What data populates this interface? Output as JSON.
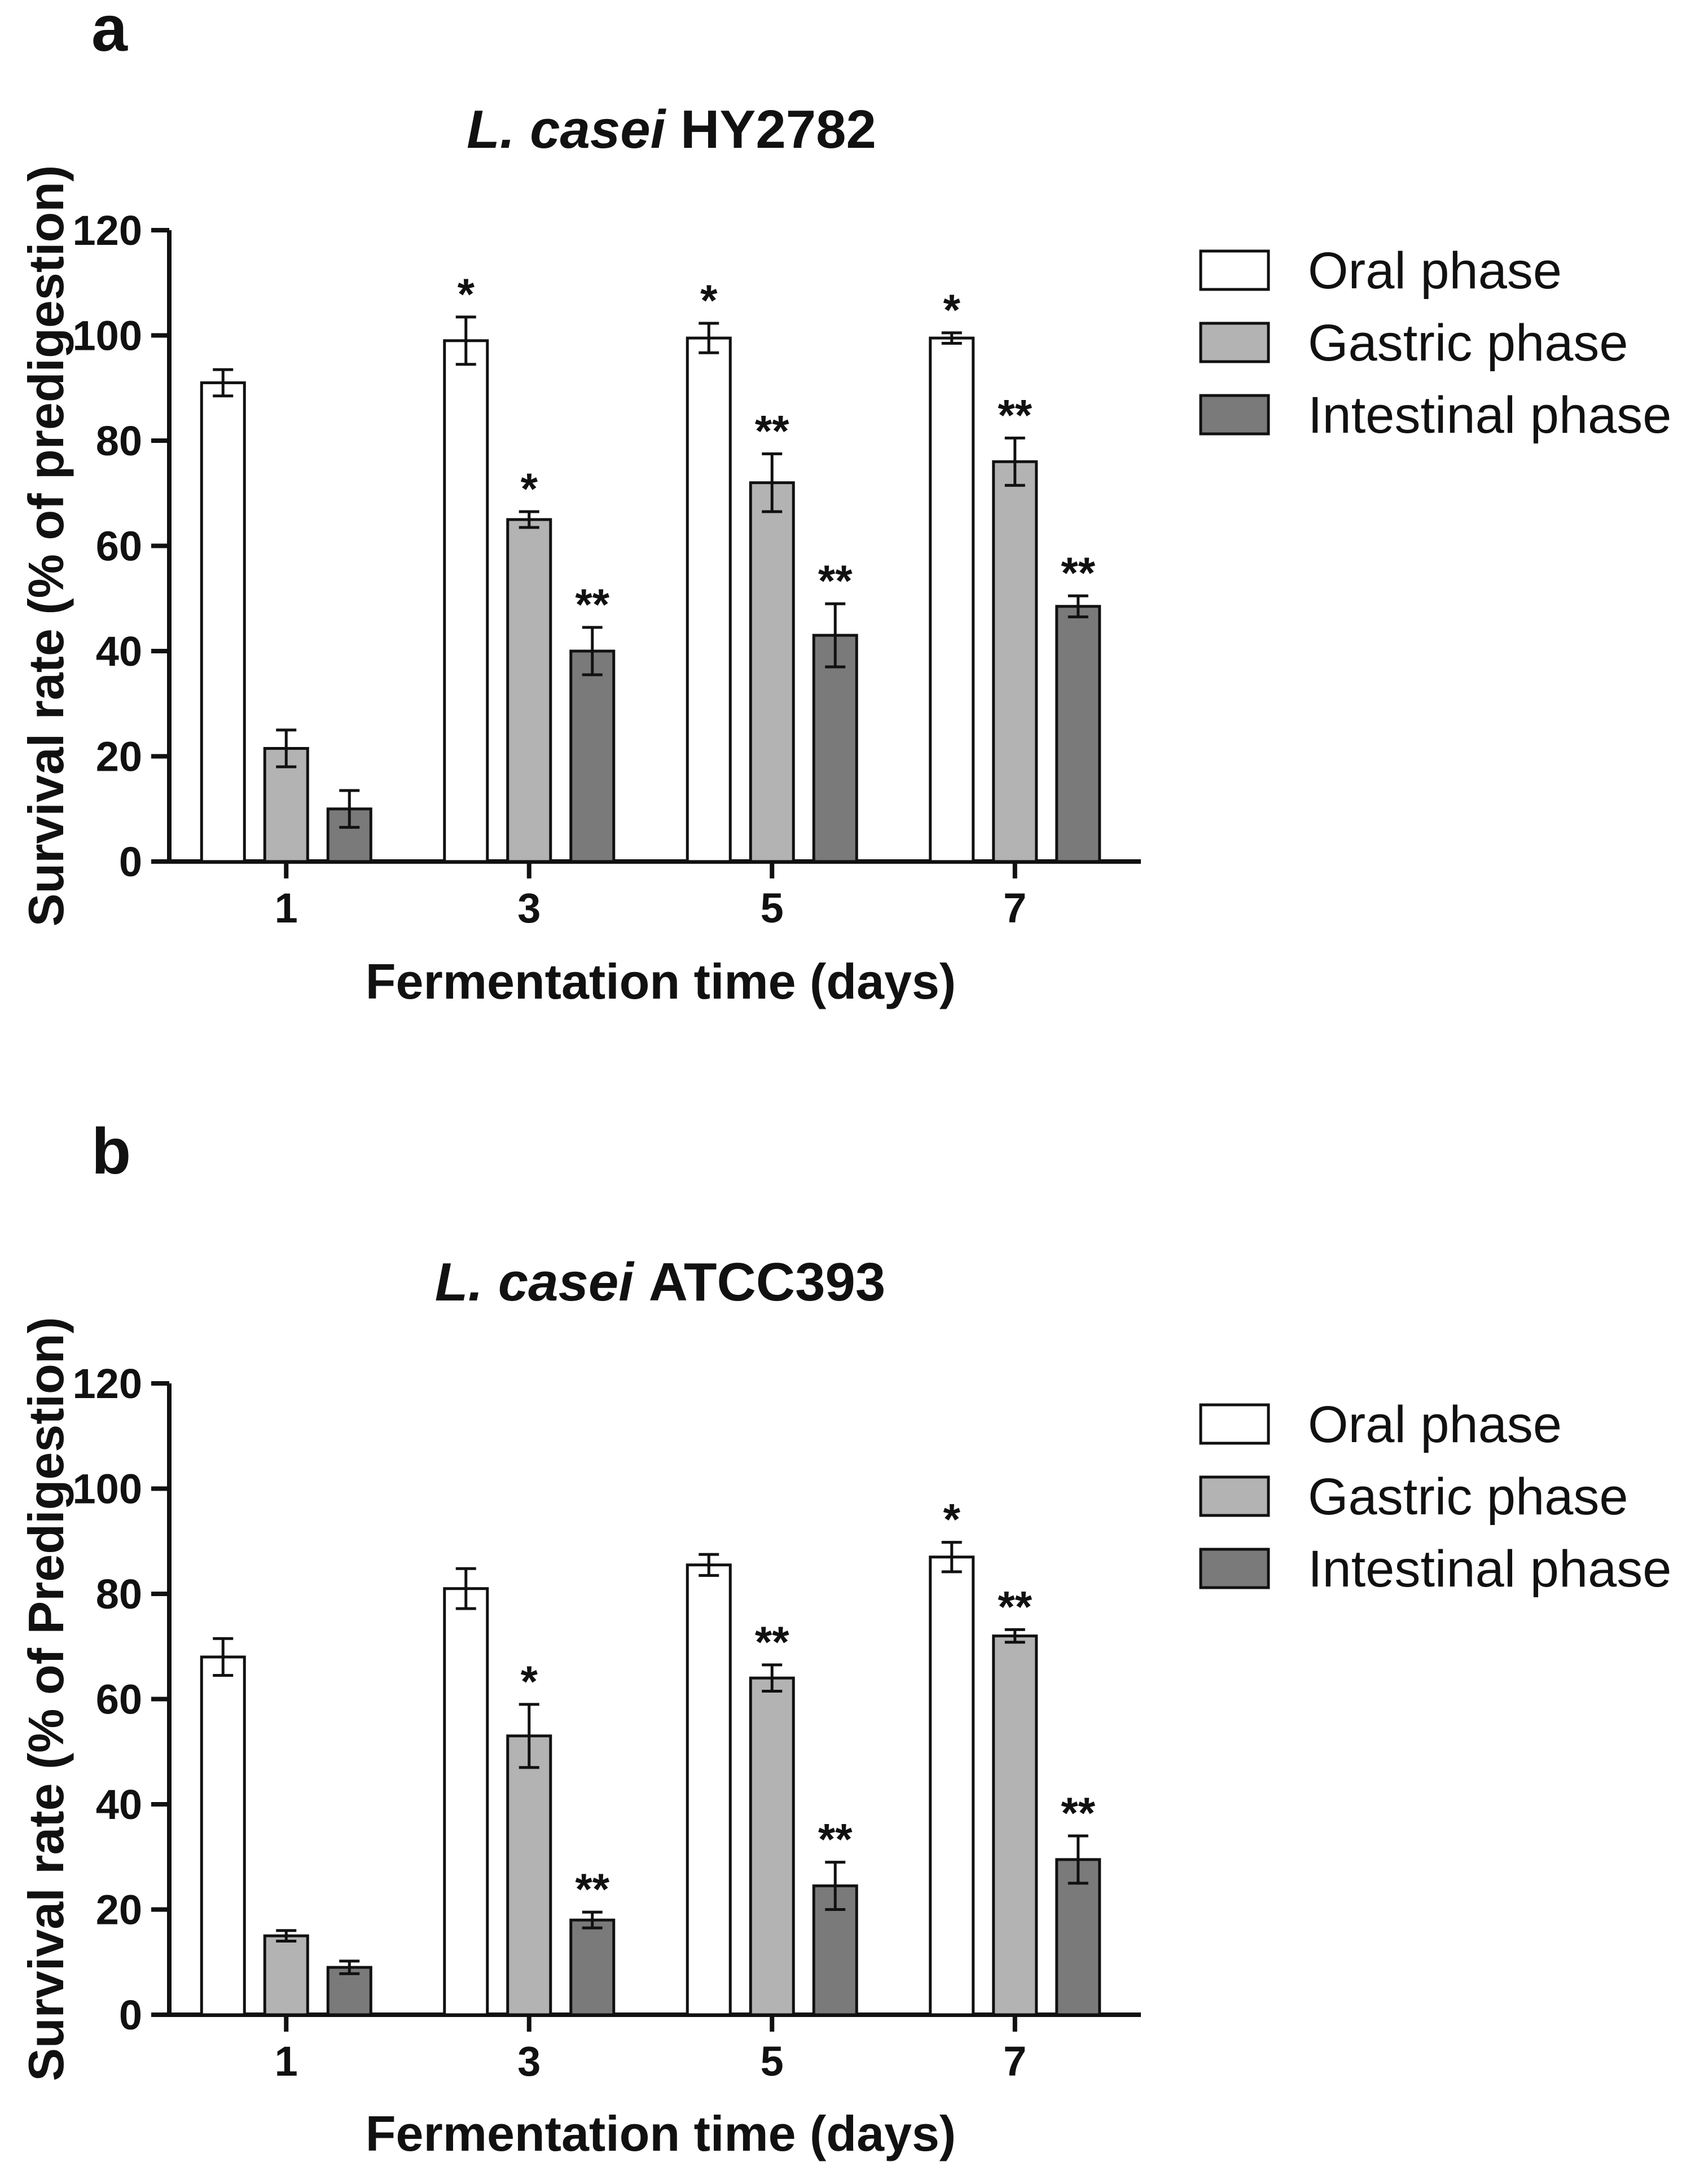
{
  "colors": {
    "oral": "#ffffff",
    "gastric": "#b3b3b3",
    "intestinal": "#7a7a7a"
  },
  "chart_data": [
    {
      "panel": "a",
      "type": "bar",
      "title_italic": "L. casei",
      "title_rest": "HY2782",
      "xlabel": "Fermentation time (days)",
      "ylabel": "Survival rate (% of predigestion)",
      "ylim": [
        0,
        120
      ],
      "yticks": [
        0,
        20,
        40,
        60,
        80,
        100,
        120
      ],
      "categories": [
        "1",
        "3",
        "5",
        "7"
      ],
      "legend": [
        "Oral phase",
        "Gastric phase",
        "Intestinal phase"
      ],
      "series": [
        {
          "name": "Oral phase",
          "values": [
            91,
            99,
            99.5,
            99.5
          ],
          "errors": [
            2.5,
            4.5,
            2.8,
            1.0
          ],
          "sig": [
            "",
            "*",
            "*",
            "*"
          ]
        },
        {
          "name": "Gastric phase",
          "values": [
            21.5,
            65,
            72,
            76
          ],
          "errors": [
            3.5,
            1.5,
            5.5,
            4.5
          ],
          "sig": [
            "",
            "*",
            "**",
            "**"
          ]
        },
        {
          "name": "Intestinal phase",
          "values": [
            10,
            40,
            43,
            48.5
          ],
          "errors": [
            3.5,
            4.5,
            6.0,
            2.0
          ],
          "sig": [
            "",
            "**",
            "**",
            "**"
          ]
        }
      ]
    },
    {
      "panel": "b",
      "type": "bar",
      "title_italic": "L. casei",
      "title_rest": "ATCC393",
      "xlabel": "Fermentation time (days)",
      "ylabel": "Survival rate (% of Predigestion)",
      "ylim": [
        0,
        120
      ],
      "yticks": [
        0,
        20,
        40,
        60,
        80,
        100,
        120
      ],
      "categories": [
        "1",
        "3",
        "5",
        "7"
      ],
      "legend": [
        "Oral phase",
        "Gastric phase",
        "Intestinal phase"
      ],
      "series": [
        {
          "name": "Oral phase",
          "values": [
            68,
            81,
            85.5,
            87
          ],
          "errors": [
            3.5,
            3.8,
            2.0,
            2.8
          ],
          "sig": [
            "",
            "",
            "",
            "*"
          ]
        },
        {
          "name": "Gastric phase",
          "values": [
            15,
            53,
            64,
            72
          ],
          "errors": [
            1.0,
            6.0,
            2.5,
            1.2
          ],
          "sig": [
            "",
            "*",
            "**",
            "**"
          ]
        },
        {
          "name": "Intestinal phase",
          "values": [
            9,
            18,
            24.5,
            29.5
          ],
          "errors": [
            1.2,
            1.5,
            4.5,
            4.5
          ],
          "sig": [
            "",
            "**",
            "**",
            "**"
          ]
        }
      ]
    }
  ]
}
